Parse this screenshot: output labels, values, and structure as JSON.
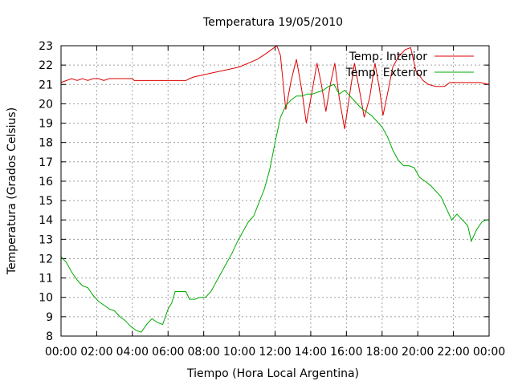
{
  "chart_data": {
    "type": "line",
    "title": "Temperatura 19/05/2010",
    "xlabel": "Tiempo (Hora Local Argentina)",
    "ylabel": "Temperatura (Grados Celsius)",
    "xlim": [
      0,
      24
    ],
    "ylim": [
      8,
      23
    ],
    "grid": true,
    "legend_position": "top-right",
    "x_tick_labels": [
      "00:00",
      "02:00",
      "04:00",
      "06:00",
      "08:00",
      "10:00",
      "12:00",
      "14:00",
      "16:00",
      "18:00",
      "20:00",
      "22:00",
      "00:00"
    ],
    "y_ticks": [
      8,
      9,
      10,
      11,
      12,
      13,
      14,
      15,
      16,
      17,
      18,
      19,
      20,
      21,
      22,
      23
    ],
    "series": [
      {
        "name": "Temp. Interior",
        "color": "#dd0000",
        "points": [
          [
            0,
            21.1
          ],
          [
            0.3,
            21.2
          ],
          [
            0.6,
            21.3
          ],
          [
            0.9,
            21.2
          ],
          [
            1.2,
            21.3
          ],
          [
            1.5,
            21.2
          ],
          [
            1.8,
            21.3
          ],
          [
            2.1,
            21.3
          ],
          [
            2.4,
            21.2
          ],
          [
            2.7,
            21.3
          ],
          [
            3,
            21.3
          ],
          [
            3.5,
            21.3
          ],
          [
            4,
            21.3
          ],
          [
            4.1,
            21.2
          ],
          [
            5,
            21.2
          ],
          [
            6,
            21.2
          ],
          [
            7,
            21.2
          ],
          [
            7.2,
            21.3
          ],
          [
            7.5,
            21.4
          ],
          [
            8,
            21.5
          ],
          [
            8.5,
            21.6
          ],
          [
            9,
            21.7
          ],
          [
            9.5,
            21.8
          ],
          [
            10,
            21.9
          ],
          [
            10.5,
            22.1
          ],
          [
            11,
            22.3
          ],
          [
            11.5,
            22.6
          ],
          [
            11.8,
            22.8
          ],
          [
            12.1,
            23
          ],
          [
            12.3,
            22.5
          ],
          [
            12.6,
            19.7
          ],
          [
            12.9,
            21.2
          ],
          [
            13.2,
            22.3
          ],
          [
            13.5,
            20.7
          ],
          [
            13.75,
            19
          ],
          [
            14.05,
            20.5
          ],
          [
            14.35,
            22.1
          ],
          [
            14.6,
            21
          ],
          [
            14.85,
            19.6
          ],
          [
            15.1,
            21
          ],
          [
            15.35,
            22.1
          ],
          [
            15.6,
            20.3
          ],
          [
            15.9,
            18.7
          ],
          [
            16.2,
            20.6
          ],
          [
            16.45,
            22.1
          ],
          [
            16.75,
            20.6
          ],
          [
            17,
            19.3
          ],
          [
            17.3,
            20.3
          ],
          [
            17.6,
            22.1
          ],
          [
            17.85,
            20.8
          ],
          [
            18.05,
            19.4
          ],
          [
            18.3,
            20.5
          ],
          [
            18.6,
            21.9
          ],
          [
            18.9,
            22.4
          ],
          [
            19.3,
            22.8
          ],
          [
            19.6,
            22.9
          ],
          [
            19.9,
            21.7
          ],
          [
            20.3,
            21.2
          ],
          [
            20.6,
            21.0
          ],
          [
            21,
            20.9
          ],
          [
            21.5,
            20.9
          ],
          [
            21.8,
            21.1
          ],
          [
            22.5,
            21.1
          ],
          [
            23,
            21.1
          ],
          [
            23.5,
            21.1
          ],
          [
            24,
            21.0
          ]
        ]
      },
      {
        "name": "Temp. Exterior",
        "color": "#00aa00",
        "points": [
          [
            0,
            12.1
          ],
          [
            0.3,
            11.8
          ],
          [
            0.6,
            11.3
          ],
          [
            0.9,
            10.9
          ],
          [
            1.2,
            10.6
          ],
          [
            1.5,
            10.5
          ],
          [
            1.8,
            10.1
          ],
          [
            2.1,
            9.8
          ],
          [
            2.4,
            9.6
          ],
          [
            2.7,
            9.4
          ],
          [
            3,
            9.3
          ],
          [
            3.3,
            9.0
          ],
          [
            3.6,
            8.8
          ],
          [
            3.9,
            8.5
          ],
          [
            4.2,
            8.3
          ],
          [
            4.5,
            8.2
          ],
          [
            4.8,
            8.6
          ],
          [
            5.1,
            8.9
          ],
          [
            5.4,
            8.7
          ],
          [
            5.7,
            8.6
          ],
          [
            6,
            9.4
          ],
          [
            6.2,
            9.7
          ],
          [
            6.4,
            10.3
          ],
          [
            6.8,
            10.3
          ],
          [
            7,
            10.3
          ],
          [
            7.2,
            9.9
          ],
          [
            7.5,
            9.9
          ],
          [
            7.8,
            10.0
          ],
          [
            8.1,
            10.0
          ],
          [
            8.4,
            10.3
          ],
          [
            8.7,
            10.8
          ],
          [
            9,
            11.3
          ],
          [
            9.3,
            11.8
          ],
          [
            9.6,
            12.3
          ],
          [
            9.9,
            12.9
          ],
          [
            10.2,
            13.4
          ],
          [
            10.5,
            13.9
          ],
          [
            10.8,
            14.2
          ],
          [
            11.1,
            14.9
          ],
          [
            11.4,
            15.6
          ],
          [
            11.7,
            16.6
          ],
          [
            12,
            18.0
          ],
          [
            12.3,
            19.3
          ],
          [
            12.6,
            19.9
          ],
          [
            12.9,
            20.2
          ],
          [
            13.2,
            20.4
          ],
          [
            13.5,
            20.4
          ],
          [
            13.8,
            20.5
          ],
          [
            14.1,
            20.5
          ],
          [
            14.4,
            20.6
          ],
          [
            14.7,
            20.7
          ],
          [
            15,
            20.9
          ],
          [
            15.3,
            21.0
          ],
          [
            15.6,
            20.5
          ],
          [
            15.9,
            20.7
          ],
          [
            16.2,
            20.4
          ],
          [
            16.5,
            20.1
          ],
          [
            16.8,
            19.8
          ],
          [
            17.1,
            19.6
          ],
          [
            17.4,
            19.4
          ],
          [
            17.7,
            19.1
          ],
          [
            18,
            18.8
          ],
          [
            18.3,
            18.3
          ],
          [
            18.6,
            17.6
          ],
          [
            18.9,
            17.1
          ],
          [
            19.2,
            16.8
          ],
          [
            19.5,
            16.8
          ],
          [
            19.8,
            16.7
          ],
          [
            20.1,
            16.2
          ],
          [
            20.4,
            16.0
          ],
          [
            20.7,
            15.8
          ],
          [
            21,
            15.5
          ],
          [
            21.3,
            15.2
          ],
          [
            21.6,
            14.6
          ],
          [
            21.9,
            14.0
          ],
          [
            22.2,
            14.3
          ],
          [
            22.5,
            14.0
          ],
          [
            22.8,
            13.7
          ],
          [
            23.0,
            12.9
          ],
          [
            23.3,
            13.5
          ],
          [
            23.6,
            13.9
          ],
          [
            23.85,
            14.0
          ],
          [
            24,
            14.0
          ]
        ]
      }
    ]
  }
}
